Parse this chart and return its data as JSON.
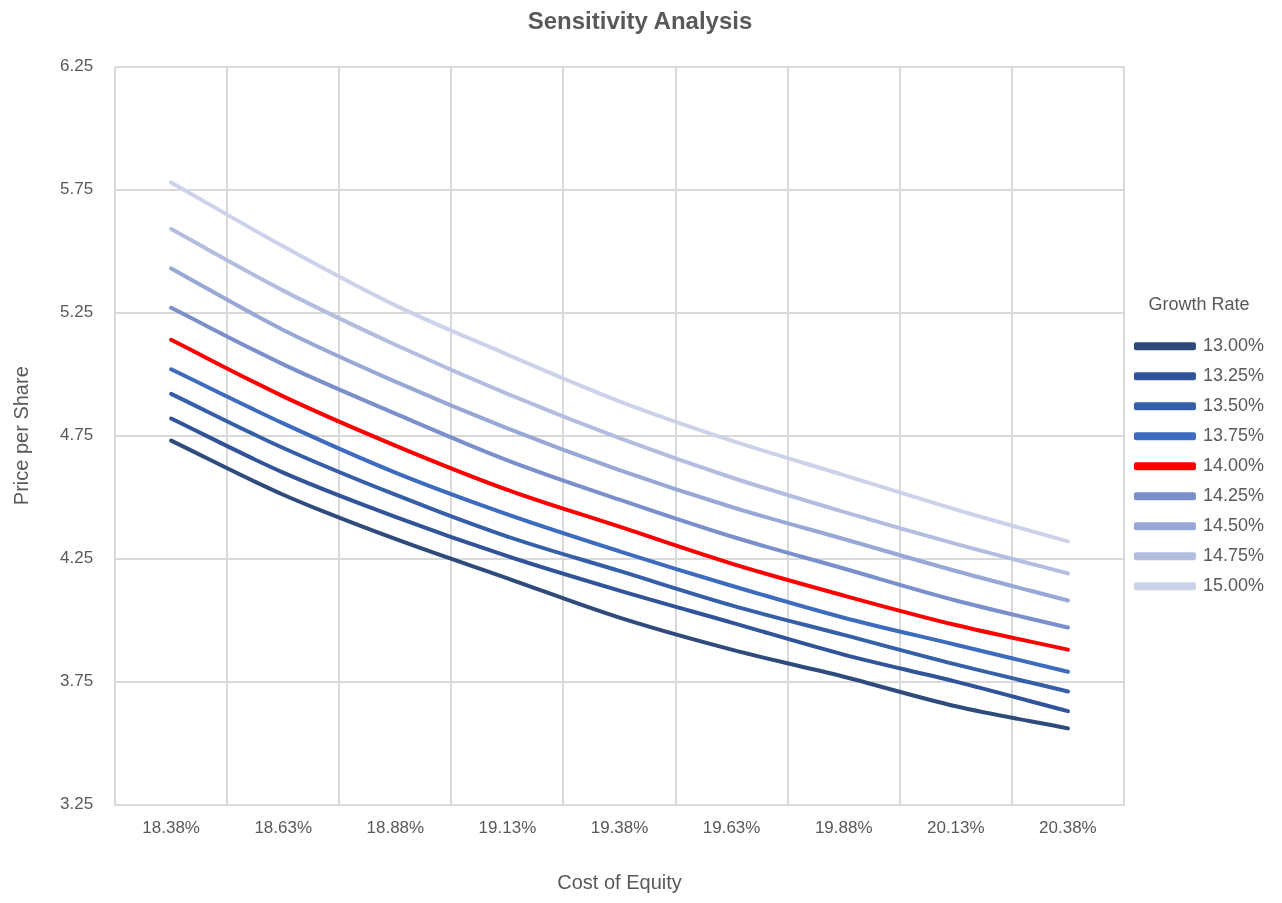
{
  "chart_data": {
    "type": "line",
    "title": "Sensitivity Analysis",
    "xlabel": "Cost of Equity",
    "ylabel": "Price per Share",
    "legend_title": "Growth Rate",
    "legend": "right",
    "grid": true,
    "marker": "none",
    "line_style": "solid",
    "categories": [
      "18.38%",
      "18.63%",
      "18.88%",
      "19.13%",
      "19.38%",
      "19.63%",
      "19.88%",
      "20.13%",
      "20.38%"
    ],
    "ylim": [
      3.25,
      6.25
    ],
    "yticks": [
      {
        "value": 3.25,
        "label": "3.25"
      },
      {
        "value": 3.75,
        "label": "3.75"
      },
      {
        "value": 4.25,
        "label": "4.25"
      },
      {
        "value": 4.75,
        "label": "4.75"
      },
      {
        "value": 5.25,
        "label": "5.25"
      },
      {
        "value": 5.75,
        "label": "5.75"
      },
      {
        "value": 6.25,
        "label": "6.25"
      }
    ],
    "series": [
      {
        "name": "13.00%",
        "color": "#2f4b7c",
        "values": [
          4.73,
          4.51,
          4.33,
          4.17,
          4.01,
          3.88,
          3.77,
          3.65,
          3.56
        ]
      },
      {
        "name": "13.25%",
        "color": "#30539a",
        "values": [
          4.82,
          4.6,
          4.42,
          4.26,
          4.12,
          3.99,
          3.86,
          3.75,
          3.63
        ]
      },
      {
        "name": "13.50%",
        "color": "#3560a8",
        "values": [
          4.92,
          4.7,
          4.51,
          4.34,
          4.2,
          4.06,
          3.94,
          3.82,
          3.71
        ]
      },
      {
        "name": "13.75%",
        "color": "#3d6bbd",
        "values": [
          5.02,
          4.8,
          4.6,
          4.43,
          4.28,
          4.14,
          4.01,
          3.9,
          3.79
        ]
      },
      {
        "name": "14.00%",
        "color": "#ff0000",
        "values": [
          5.14,
          4.91,
          4.71,
          4.53,
          4.38,
          4.23,
          4.1,
          3.98,
          3.88
        ]
      },
      {
        "name": "14.25%",
        "color": "#7a8fcc",
        "values": [
          5.27,
          5.04,
          4.84,
          4.65,
          4.49,
          4.34,
          4.21,
          4.08,
          3.97
        ]
      },
      {
        "name": "14.50%",
        "color": "#98a8d6",
        "values": [
          5.43,
          5.18,
          4.97,
          4.78,
          4.61,
          4.46,
          4.33,
          4.2,
          4.08
        ]
      },
      {
        "name": "14.75%",
        "color": "#b3bde0",
        "values": [
          5.59,
          5.34,
          5.12,
          4.92,
          4.74,
          4.58,
          4.44,
          4.31,
          4.19
        ]
      },
      {
        "name": "15.00%",
        "color": "#ccd2ea",
        "values": [
          5.78,
          5.52,
          5.28,
          5.08,
          4.89,
          4.73,
          4.59,
          4.45,
          4.32
        ]
      }
    ]
  }
}
